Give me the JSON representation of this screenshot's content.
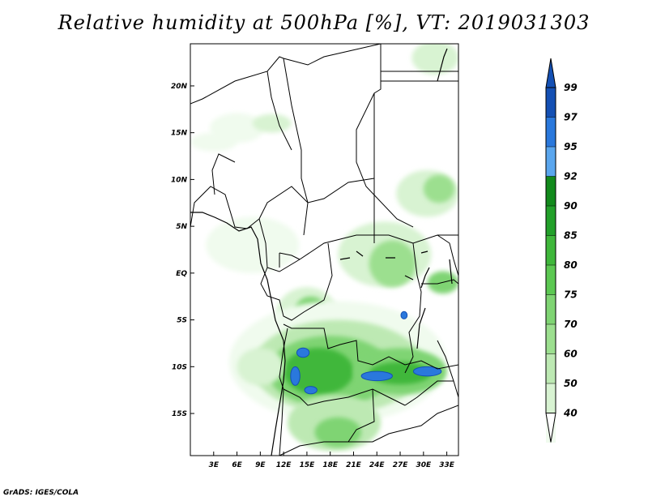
{
  "title": "Relative humidity at 500hPa [%], VT: 2019031303",
  "credit": "GrADS: IGES/COLA",
  "map": {
    "lon_range": [
      0,
      34.5
    ],
    "lat_range": [
      -19.5,
      24.5
    ],
    "x_ticks": [
      {
        "lon": 3,
        "label": "3E"
      },
      {
        "lon": 6,
        "label": "6E"
      },
      {
        "lon": 9,
        "label": "9E"
      },
      {
        "lon": 12,
        "label": "12E"
      },
      {
        "lon": 15,
        "label": "15E"
      },
      {
        "lon": 18,
        "label": "18E"
      },
      {
        "lon": 21,
        "label": "21E"
      },
      {
        "lon": 24,
        "label": "24E"
      },
      {
        "lon": 27,
        "label": "27E"
      },
      {
        "lon": 30,
        "label": "30E"
      },
      {
        "lon": 33,
        "label": "33E"
      }
    ],
    "y_ticks": [
      {
        "lat": 20,
        "label": "20N"
      },
      {
        "lat": 15,
        "label": "15N"
      },
      {
        "lat": 10,
        "label": "10N"
      },
      {
        "lat": 5,
        "label": "5N"
      },
      {
        "lat": 0,
        "label": "EQ"
      },
      {
        "lat": -5,
        "label": "5S"
      },
      {
        "lat": -10,
        "label": "10S"
      },
      {
        "lat": -15,
        "label": "15S"
      }
    ]
  },
  "colorbar": {
    "levels": [
      {
        "label": "40",
        "color": "#f0fbee"
      },
      {
        "label": "50",
        "color": "#d8f3d2"
      },
      {
        "label": "60",
        "color": "#bde9b3"
      },
      {
        "label": "70",
        "color": "#9cdf8f"
      },
      {
        "label": "75",
        "color": "#7fd473"
      },
      {
        "label": "80",
        "color": "#5cc852"
      },
      {
        "label": "85",
        "color": "#3fb73b"
      },
      {
        "label": "90",
        "color": "#22a02a"
      },
      {
        "label": "92",
        "color": "#128a1c"
      },
      {
        "label": "95",
        "color": "#5aa6ee"
      },
      {
        "label": "97",
        "color": "#2a78dc"
      },
      {
        "label": "99",
        "color": "#1450b4"
      }
    ],
    "top_color": "#1450b4",
    "bottom_color": "#ffffff"
  },
  "humidity_blobs": [
    {
      "lon": 6.0,
      "lat": 15.5,
      "rx": 3.5,
      "ry": 1.6,
      "level": 0
    },
    {
      "lon": 10.5,
      "lat": 16.0,
      "rx": 2.5,
      "ry": 1.0,
      "level": 1
    },
    {
      "lon": 3.0,
      "lat": 14.0,
      "rx": 3.0,
      "ry": 1.0,
      "level": 0
    },
    {
      "lon": 31.5,
      "lat": 23.0,
      "rx": 3.0,
      "ry": 1.8,
      "level": 1
    },
    {
      "lon": 30.5,
      "lat": 8.5,
      "rx": 4.0,
      "ry": 2.5,
      "level": 1
    },
    {
      "lon": 32.0,
      "lat": 9.0,
      "rx": 2.0,
      "ry": 1.5,
      "level": 3
    },
    {
      "lon": 8.0,
      "lat": 3.0,
      "rx": 6.0,
      "ry": 3.0,
      "level": 0
    },
    {
      "lon": 25.0,
      "lat": 2.0,
      "rx": 6.0,
      "ry": 3.5,
      "level": 1
    },
    {
      "lon": 26.0,
      "lat": 1.0,
      "rx": 3.0,
      "ry": 2.5,
      "level": 3
    },
    {
      "lon": 32.5,
      "lat": -1.0,
      "rx": 2.0,
      "ry": 1.2,
      "level": 4
    },
    {
      "lon": 15.0,
      "lat": -4.5,
      "rx": 4.0,
      "ry": 3.0,
      "level": 1
    },
    {
      "lon": 15.5,
      "lat": -4.0,
      "rx": 2.0,
      "ry": 1.5,
      "level": 4
    },
    {
      "lon": 19.0,
      "lat": -9.5,
      "rx": 14.0,
      "ry": 6.5,
      "level": 0
    },
    {
      "lon": 19.0,
      "lat": -10.0,
      "rx": 11.0,
      "ry": 5.0,
      "level": 2
    },
    {
      "lon": 18.0,
      "lat": -10.5,
      "rx": 8.0,
      "ry": 3.8,
      "level": 4
    },
    {
      "lon": 16.5,
      "lat": -10.5,
      "rx": 4.5,
      "ry": 2.5,
      "level": 6
    },
    {
      "lon": 27.0,
      "lat": -10.5,
      "rx": 6.0,
      "ry": 2.5,
      "level": 4
    },
    {
      "lon": 27.0,
      "lat": -10.7,
      "rx": 4.0,
      "ry": 1.2,
      "level": 6
    },
    {
      "lon": 18.5,
      "lat": -16.0,
      "rx": 6.0,
      "ry": 3.0,
      "level": 2
    },
    {
      "lon": 19.0,
      "lat": -17.0,
      "rx": 3.0,
      "ry": 1.6,
      "level": 4
    },
    {
      "lon": 9.0,
      "lat": -10.0,
      "rx": 3.0,
      "ry": 2.0,
      "level": 1
    }
  ],
  "blue_patches": [
    {
      "lon": 14.5,
      "lat": -8.5,
      "rx": 0.8,
      "ry": 0.5
    },
    {
      "lon": 13.5,
      "lat": -11.0,
      "rx": 0.6,
      "ry": 1.0
    },
    {
      "lon": 15.5,
      "lat": -12.5,
      "rx": 0.8,
      "ry": 0.4
    },
    {
      "lon": 24.0,
      "lat": -11.0,
      "rx": 2.0,
      "ry": 0.5
    },
    {
      "lon": 30.5,
      "lat": -10.5,
      "rx": 1.8,
      "ry": 0.5
    },
    {
      "lon": 27.5,
      "lat": -4.5,
      "rx": 0.4,
      "ry": 0.4
    }
  ]
}
